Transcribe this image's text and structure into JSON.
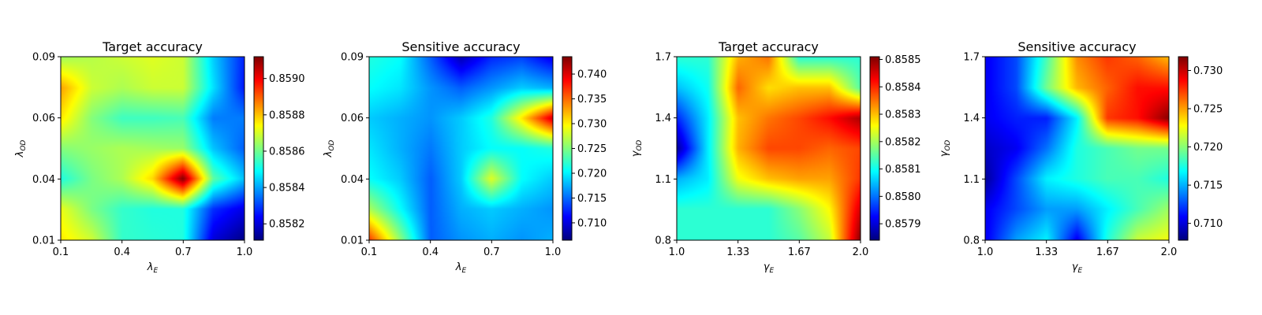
{
  "chart_data": [
    {
      "type": "heatmap",
      "title": "Target accuracy",
      "xlabel": {
        "base": "λ",
        "sub": "E"
      },
      "ylabel": {
        "base": "λ",
        "sub": "OD"
      },
      "x_ticks": [
        "0.1",
        "0.4",
        "0.7",
        "1.0"
      ],
      "y_ticks": [
        "0.01",
        "0.04",
        "0.06",
        "0.09"
      ],
      "colorbar_ticks": [
        "0.8582",
        "0.8584",
        "0.8586",
        "0.8588",
        "0.8590"
      ],
      "vmin": 0.85811,
      "vmax": 0.85912,
      "colormap": "jet",
      "values": [
        [
          0.85865,
          0.85867,
          0.85869,
          0.85871,
          0.85869,
          0.85844,
          0.85827
        ],
        [
          0.85883,
          0.85869,
          0.85866,
          0.85869,
          0.85869,
          0.85846,
          0.85826
        ],
        [
          0.85876,
          0.85862,
          0.85855,
          0.85855,
          0.85856,
          0.85836,
          0.85836
        ],
        [
          0.85862,
          0.85864,
          0.85866,
          0.85865,
          0.85864,
          0.85843,
          0.85833
        ],
        [
          0.85852,
          0.85861,
          0.85866,
          0.85878,
          0.85912,
          0.85858,
          0.85843
        ],
        [
          0.85872,
          0.85861,
          0.85854,
          0.85852,
          0.85852,
          0.85828,
          0.85821
        ],
        [
          0.85876,
          0.85869,
          0.85854,
          0.85853,
          0.85852,
          0.8582,
          0.85812
        ]
      ]
    },
    {
      "type": "heatmap",
      "title": "Sensitive accuracy",
      "xlabel": {
        "base": "λ",
        "sub": "E"
      },
      "ylabel": {
        "base": "λ",
        "sub": "OD"
      },
      "x_ticks": [
        "0.1",
        "0.4",
        "0.7",
        "1.0"
      ],
      "y_ticks": [
        "0.01",
        "0.04",
        "0.06",
        "0.09"
      ],
      "colorbar_ticks": [
        "0.710",
        "0.715",
        "0.720",
        "0.725",
        "0.730",
        "0.735",
        "0.740"
      ],
      "vmin": 0.7065,
      "vmax": 0.7435,
      "colormap": "jet",
      "values": [
        [
          0.7215,
          0.7205,
          0.7145,
          0.7085,
          0.7125,
          0.7135,
          0.7105
        ],
        [
          0.7205,
          0.7195,
          0.7165,
          0.7145,
          0.7165,
          0.7185,
          0.7175
        ],
        [
          0.7185,
          0.7175,
          0.7165,
          0.7185,
          0.7215,
          0.7305,
          0.7405
        ],
        [
          0.7195,
          0.7175,
          0.7155,
          0.7185,
          0.7205,
          0.7205,
          0.7215
        ],
        [
          0.7205,
          0.7185,
          0.7145,
          0.7185,
          0.7285,
          0.7205,
          0.7185
        ],
        [
          0.7265,
          0.7205,
          0.7145,
          0.7175,
          0.7185,
          0.7175,
          0.7165
        ],
        [
          0.7365,
          0.7255,
          0.7145,
          0.7165,
          0.7175,
          0.7165,
          0.7175
        ]
      ]
    },
    {
      "type": "heatmap",
      "title": "Target accuracy",
      "xlabel": {
        "base": "γ",
        "sub": "E"
      },
      "ylabel": {
        "base": "γ",
        "sub": "OD"
      },
      "x_ticks": [
        "1.0",
        "1.33",
        "1.67",
        "2.0"
      ],
      "y_ticks": [
        "0.8",
        "1.1",
        "1.4",
        "1.7"
      ],
      "colorbar_ticks": [
        "0.8579",
        "0.8580",
        "0.8581",
        "0.8582",
        "0.8583",
        "0.8584",
        "0.8585"
      ],
      "vmin": 0.85784,
      "vmax": 0.85851,
      "colormap": "jet",
      "values": [
        [
          0.85812,
          0.85812,
          0.85831,
          0.85835,
          0.85812,
          0.85812,
          0.85812
        ],
        [
          0.85805,
          0.8581,
          0.85836,
          0.85828,
          0.8583,
          0.8583,
          0.85815
        ],
        [
          0.85795,
          0.85808,
          0.8583,
          0.85835,
          0.85838,
          0.85842,
          0.85848
        ],
        [
          0.85786,
          0.85808,
          0.85831,
          0.85838,
          0.85838,
          0.85836,
          0.85838
        ],
        [
          0.85804,
          0.85808,
          0.85825,
          0.8583,
          0.85832,
          0.85832,
          0.85839
        ],
        [
          0.85812,
          0.85812,
          0.85812,
          0.85812,
          0.85818,
          0.85826,
          0.85845
        ],
        [
          0.85812,
          0.85812,
          0.85812,
          0.85812,
          0.85815,
          0.85822,
          0.8585
        ]
      ]
    },
    {
      "type": "heatmap",
      "title": "Sensitive accuracy",
      "xlabel": {
        "base": "γ",
        "sub": "E"
      },
      "ylabel": {
        "base": "γ",
        "sub": "OD"
      },
      "x_ticks": [
        "1.0",
        "1.33",
        "1.67",
        "2.0"
      ],
      "y_ticks": [
        "0.8",
        "1.1",
        "1.4",
        "1.7"
      ],
      "colorbar_ticks": [
        "0.710",
        "0.715",
        "0.720",
        "0.725",
        "0.730"
      ],
      "vmin": 0.7078,
      "vmax": 0.7318,
      "colormap": "jet",
      "values": [
        [
          0.7105,
          0.7125,
          0.7185,
          0.7255,
          0.7275,
          0.7265,
          0.7245
        ],
        [
          0.7105,
          0.7125,
          0.7195,
          0.7245,
          0.7265,
          0.7285,
          0.7285
        ],
        [
          0.7105,
          0.7115,
          0.7115,
          0.7165,
          0.7275,
          0.7285,
          0.7315
        ],
        [
          0.7095,
          0.7105,
          0.7135,
          0.7175,
          0.7185,
          0.7195,
          0.7195
        ],
        [
          0.7085,
          0.7125,
          0.7165,
          0.7175,
          0.7185,
          0.7185,
          0.7175
        ],
        [
          0.7105,
          0.7125,
          0.7145,
          0.7145,
          0.7165,
          0.7185,
          0.7205
        ],
        [
          0.7105,
          0.7145,
          0.7165,
          0.7105,
          0.7175,
          0.7215,
          0.7225
        ]
      ]
    }
  ]
}
